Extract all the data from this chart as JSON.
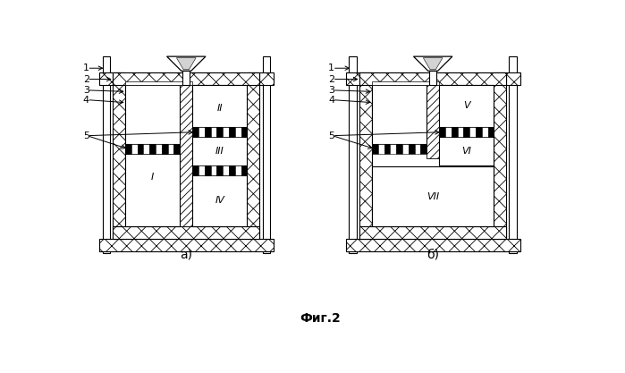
{
  "fig_label": "Фиг.2",
  "label_a": "а)",
  "label_b": "б)",
  "bg_color": "#ffffff",
  "figsize": [
    6.99,
    4.17
  ],
  "dpi": 100
}
